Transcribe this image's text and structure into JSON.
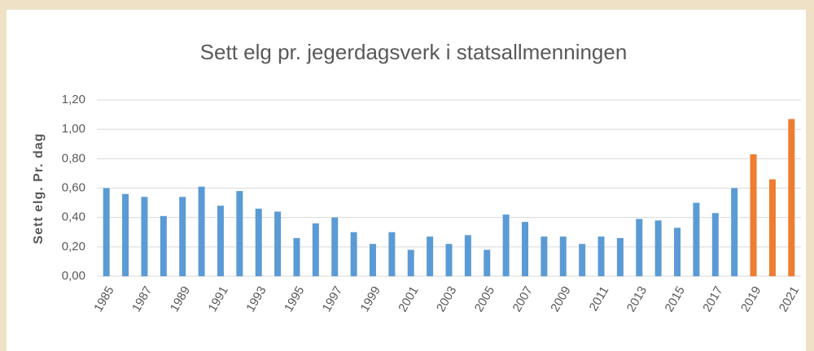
{
  "chart_data": {
    "type": "bar",
    "title": "Sett elg pr. jegerdagsverk i statsallmenningen",
    "y_label": "Sett elg. Pr. dag",
    "categories": [
      "1985",
      null,
      "1987",
      null,
      "1989",
      null,
      "1991",
      null,
      "1993",
      null,
      "1995",
      null,
      "1997",
      null,
      "1999",
      null,
      "2001",
      null,
      "2003",
      null,
      "2005",
      null,
      "2007",
      null,
      "2009",
      null,
      "2011",
      null,
      "2013",
      null,
      "2015",
      null,
      "2017",
      null,
      "2019",
      null,
      "2021"
    ],
    "values": [
      0.6,
      0.56,
      0.54,
      0.41,
      0.54,
      0.61,
      0.48,
      0.58,
      0.46,
      0.44,
      0.26,
      0.36,
      0.4,
      0.3,
      0.22,
      0.3,
      0.18,
      0.27,
      0.22,
      0.28,
      0.18,
      0.42,
      0.37,
      0.27,
      0.27,
      0.22,
      0.27,
      0.26,
      0.39,
      0.38,
      0.33,
      0.5,
      0.43,
      0.6,
      0.83,
      0.66,
      1.07
    ],
    "colors": [
      "#5b9bd5",
      "#5b9bd5",
      "#5b9bd5",
      "#5b9bd5",
      "#5b9bd5",
      "#5b9bd5",
      "#5b9bd5",
      "#5b9bd5",
      "#5b9bd5",
      "#5b9bd5",
      "#5b9bd5",
      "#5b9bd5",
      "#5b9bd5",
      "#5b9bd5",
      "#5b9bd5",
      "#5b9bd5",
      "#5b9bd5",
      "#5b9bd5",
      "#5b9bd5",
      "#5b9bd5",
      "#5b9bd5",
      "#5b9bd5",
      "#5b9bd5",
      "#5b9bd5",
      "#5b9bd5",
      "#5b9bd5",
      "#5b9bd5",
      "#5b9bd5",
      "#5b9bd5",
      "#5b9bd5",
      "#5b9bd5",
      "#5b9bd5",
      "#5b9bd5",
      "#5b9bd5",
      "#ed7d31",
      "#ed7d31",
      "#ed7d31"
    ],
    "ylim": [
      0,
      1.2
    ],
    "yticks": [
      {
        "value": 0,
        "label": "0,00"
      },
      {
        "value": 0.2,
        "label": "0,20"
      },
      {
        "value": 0.4,
        "label": "0,40"
      },
      {
        "value": 0.6,
        "label": "0,60"
      },
      {
        "value": 0.8,
        "label": "0,80"
      },
      {
        "value": 1.0,
        "label": "1,00"
      },
      {
        "value": 1.2,
        "label": "1,20"
      }
    ],
    "grid": true
  }
}
